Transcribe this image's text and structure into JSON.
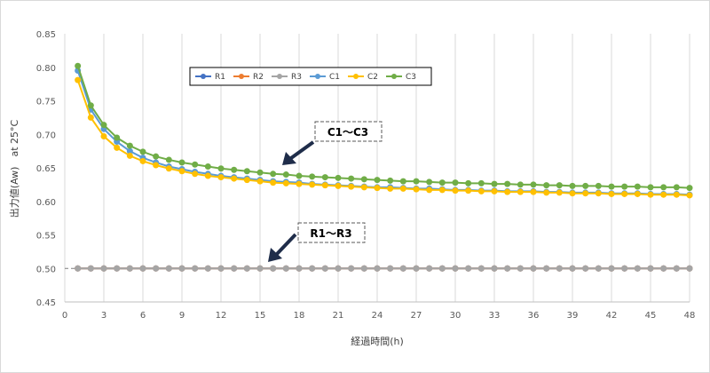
{
  "chart_data": {
    "type": "line",
    "xlabel": "経過時間(h)",
    "ylabel": "出力値(Aw)　at 25°C",
    "xlim": [
      0,
      48
    ],
    "ylim": [
      0.45,
      0.85
    ],
    "x_ticks": [
      0,
      3,
      6,
      9,
      12,
      15,
      18,
      21,
      24,
      27,
      30,
      33,
      36,
      39,
      42,
      45,
      48
    ],
    "y_ticks": [
      "0.45",
      "0.50",
      "0.55",
      "0.60",
      "0.65",
      "0.70",
      "0.75",
      "0.80",
      "0.85"
    ],
    "reference_line": 0.5,
    "grid": "vertical",
    "legend_position": "top-left",
    "series": [
      {
        "name": "R1",
        "color": "#4472c4",
        "values": [
          0.5,
          0.5,
          0.5,
          0.5,
          0.5,
          0.5,
          0.5,
          0.5,
          0.5,
          0.5,
          0.5,
          0.5,
          0.5,
          0.5,
          0.5,
          0.5,
          0.5,
          0.5,
          0.5,
          0.5,
          0.5,
          0.5,
          0.5,
          0.5,
          0.5,
          0.5,
          0.5,
          0.5,
          0.5,
          0.5,
          0.5,
          0.5,
          0.5,
          0.5,
          0.5,
          0.5,
          0.5,
          0.5,
          0.5,
          0.5,
          0.5,
          0.5,
          0.5,
          0.5,
          0.5,
          0.5,
          0.5,
          0.5
        ]
      },
      {
        "name": "R2",
        "color": "#ed7d31",
        "values": [
          0.5,
          0.5,
          0.5,
          0.5,
          0.5,
          0.5,
          0.5,
          0.5,
          0.5,
          0.5,
          0.5,
          0.5,
          0.5,
          0.5,
          0.5,
          0.5,
          0.5,
          0.5,
          0.5,
          0.5,
          0.5,
          0.5,
          0.5,
          0.5,
          0.5,
          0.5,
          0.5,
          0.5,
          0.5,
          0.5,
          0.5,
          0.5,
          0.5,
          0.5,
          0.5,
          0.5,
          0.5,
          0.5,
          0.5,
          0.5,
          0.5,
          0.5,
          0.5,
          0.5,
          0.5,
          0.5,
          0.5,
          0.5
        ]
      },
      {
        "name": "R3",
        "color": "#a5a5a5",
        "values": [
          0.5,
          0.5,
          0.5,
          0.5,
          0.5,
          0.5,
          0.5,
          0.5,
          0.5,
          0.5,
          0.5,
          0.5,
          0.5,
          0.5,
          0.5,
          0.5,
          0.5,
          0.5,
          0.5,
          0.5,
          0.5,
          0.5,
          0.5,
          0.5,
          0.5,
          0.5,
          0.5,
          0.5,
          0.5,
          0.5,
          0.5,
          0.5,
          0.5,
          0.5,
          0.5,
          0.5,
          0.5,
          0.5,
          0.5,
          0.5,
          0.5,
          0.5,
          0.5,
          0.5,
          0.5,
          0.5,
          0.5,
          0.5
        ]
      },
      {
        "name": "C1",
        "color": "#5b9bd5",
        "values": [
          0.795,
          0.737,
          0.708,
          0.689,
          0.675,
          0.665,
          0.658,
          0.652,
          0.648,
          0.644,
          0.641,
          0.638,
          0.636,
          0.634,
          0.632,
          0.63,
          0.629,
          0.628,
          0.626,
          0.625,
          0.624,
          0.623,
          0.622,
          0.621,
          0.621,
          0.62,
          0.619,
          0.619,
          0.618,
          0.617,
          0.617,
          0.616,
          0.616,
          0.615,
          0.615,
          0.615,
          0.614,
          0.614,
          0.613,
          0.613,
          0.613,
          0.612,
          0.612,
          0.612,
          0.611,
          0.611,
          0.611,
          0.61
        ]
      },
      {
        "name": "C2",
        "color": "#ffc000",
        "values": [
          0.781,
          0.725,
          0.697,
          0.68,
          0.668,
          0.66,
          0.654,
          0.649,
          0.645,
          0.641,
          0.638,
          0.636,
          0.634,
          0.632,
          0.63,
          0.628,
          0.627,
          0.626,
          0.625,
          0.624,
          0.623,
          0.622,
          0.621,
          0.62,
          0.619,
          0.619,
          0.618,
          0.617,
          0.617,
          0.616,
          0.616,
          0.615,
          0.615,
          0.614,
          0.614,
          0.614,
          0.613,
          0.613,
          0.612,
          0.612,
          0.612,
          0.611,
          0.611,
          0.611,
          0.61,
          0.61,
          0.61,
          0.609
        ]
      },
      {
        "name": "C3",
        "color": "#70ad47",
        "values": [
          0.802,
          0.743,
          0.714,
          0.695,
          0.683,
          0.674,
          0.667,
          0.662,
          0.658,
          0.655,
          0.652,
          0.649,
          0.647,
          0.645,
          0.643,
          0.641,
          0.64,
          0.638,
          0.637,
          0.636,
          0.635,
          0.634,
          0.633,
          0.632,
          0.631,
          0.63,
          0.63,
          0.629,
          0.628,
          0.628,
          0.627,
          0.627,
          0.626,
          0.626,
          0.625,
          0.625,
          0.624,
          0.624,
          0.623,
          0.623,
          0.623,
          0.622,
          0.622,
          0.622,
          0.621,
          0.621,
          0.621,
          0.62
        ]
      }
    ],
    "annotations": [
      "C1～C3",
      "R1～R3"
    ]
  }
}
